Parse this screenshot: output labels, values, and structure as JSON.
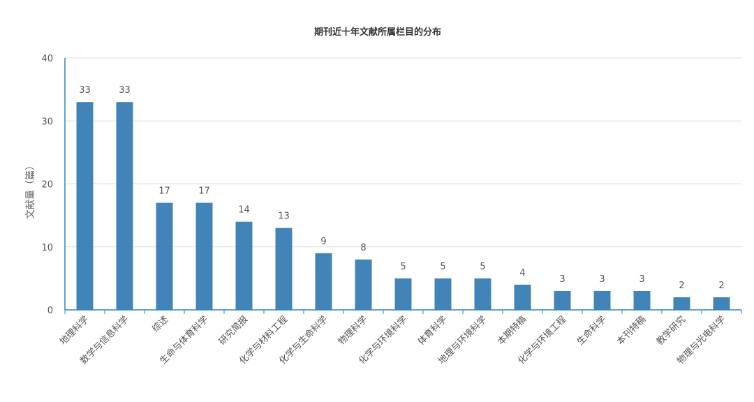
{
  "chart_data": {
    "type": "bar",
    "title": "期刊近十年文献所属栏目的分布",
    "ylabel": "文献量（篇）",
    "xlabel": "",
    "ylim": [
      0,
      40
    ],
    "yticks": [
      0,
      10,
      20,
      30,
      40
    ],
    "grid": true,
    "legend": "none",
    "bar_color": "#4384b8",
    "axis_color": "#2e86c1",
    "categories": [
      "地理科学",
      "数学与信息科学",
      "综述",
      "生命与体育科学",
      "研究简报",
      "化学与材料工程",
      "化学与生命科学",
      "物理科学",
      "化学与环境科学",
      "体育科学",
      "地理与环境科学",
      "本期特稿",
      "化学与环境工程",
      "生命科学",
      "本刊特稿",
      "教学研究",
      "物理与光电科学"
    ],
    "values": [
      33,
      33,
      17,
      17,
      14,
      13,
      9,
      8,
      5,
      5,
      5,
      4,
      3,
      3,
      3,
      2,
      2
    ]
  }
}
